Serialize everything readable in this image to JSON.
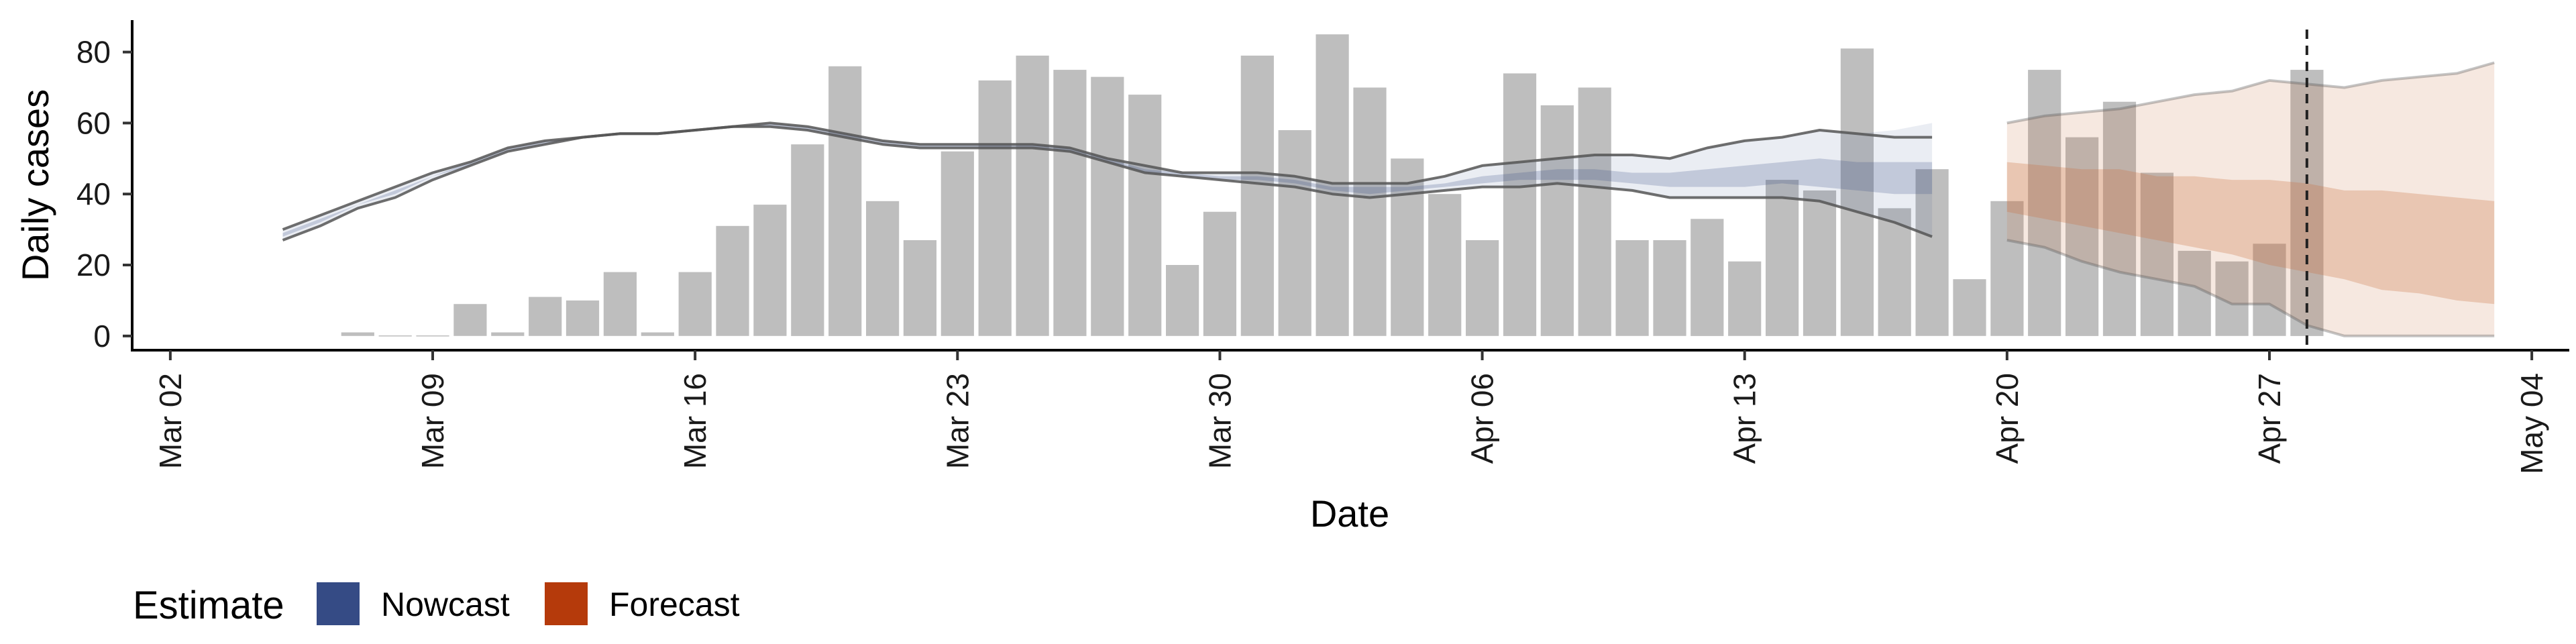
{
  "chart_data": {
    "type": "bar",
    "xlabel": "Date",
    "ylabel": "Daily cases",
    "ylim": [
      -4,
      89
    ],
    "xlim": [
      "2020-03-01",
      "2020-05-05"
    ],
    "y_ticks": [
      0,
      20,
      40,
      60,
      80
    ],
    "x_ticks": [
      {
        "date": "2020-03-02",
        "label": "Mar 02"
      },
      {
        "date": "2020-03-09",
        "label": "Mar 09"
      },
      {
        "date": "2020-03-16",
        "label": "Mar 16"
      },
      {
        "date": "2020-03-23",
        "label": "Mar 23"
      },
      {
        "date": "2020-03-30",
        "label": "Mar 30"
      },
      {
        "date": "2020-04-06",
        "label": "Apr 06"
      },
      {
        "date": "2020-04-13",
        "label": "Apr 13"
      },
      {
        "date": "2020-04-20",
        "label": "Apr 20"
      },
      {
        "date": "2020-04-27",
        "label": "Apr 27"
      },
      {
        "date": "2020-05-04",
        "label": "May 04"
      }
    ],
    "grid": false,
    "legend_position": "bottom-left",
    "bars": {
      "name": "Reported cases",
      "color": "#bebebe",
      "dates": [
        "2020-03-07",
        "2020-03-08",
        "2020-03-09",
        "2020-03-10",
        "2020-03-11",
        "2020-03-12",
        "2020-03-13",
        "2020-03-14",
        "2020-03-15",
        "2020-03-16",
        "2020-03-17",
        "2020-03-18",
        "2020-03-19",
        "2020-03-20",
        "2020-03-21",
        "2020-03-22",
        "2020-03-23",
        "2020-03-24",
        "2020-03-25",
        "2020-03-26",
        "2020-03-27",
        "2020-03-28",
        "2020-03-29",
        "2020-03-30",
        "2020-03-31",
        "2020-04-01",
        "2020-04-02",
        "2020-04-03",
        "2020-04-04",
        "2020-04-05",
        "2020-04-06",
        "2020-04-07",
        "2020-04-08",
        "2020-04-09",
        "2020-04-10",
        "2020-04-11",
        "2020-04-12",
        "2020-04-13",
        "2020-04-14",
        "2020-04-15",
        "2020-04-16",
        "2020-04-17",
        "2020-04-18",
        "2020-04-19",
        "2020-04-20",
        "2020-04-21",
        "2020-04-22",
        "2020-04-23",
        "2020-04-24",
        "2020-04-25",
        "2020-04-26",
        "2020-04-27",
        "2020-04-28"
      ],
      "values": [
        1,
        0,
        0,
        9,
        1,
        11,
        10,
        18,
        1,
        18,
        31,
        37,
        54,
        76,
        38,
        27,
        52,
        72,
        79,
        75,
        73,
        68,
        20,
        35,
        79,
        58,
        85,
        70,
        50,
        40,
        27,
        74,
        65,
        70,
        27,
        27,
        33,
        21,
        44,
        41,
        81,
        36,
        47,
        16,
        38,
        75,
        56,
        66,
        46,
        24,
        21,
        26,
        75
      ]
    },
    "vline": {
      "date": "2020-04-28",
      "style": "dashed",
      "color": "#222222"
    },
    "legend": {
      "title": "Estimate",
      "entries": [
        {
          "label": "Nowcast",
          "color": "#354b85"
        },
        {
          "label": "Forecast",
          "color": "#b53a0b"
        }
      ]
    },
    "estimate_lines": {
      "color": "#555555",
      "start": "2020-03-05",
      "end": "2020-04-19",
      "upper": [
        30,
        34,
        38,
        42,
        46,
        49,
        53,
        55,
        56,
        57,
        57,
        58,
        59,
        60,
        59,
        57,
        55,
        54,
        54,
        54,
        54,
        53,
        50,
        48,
        46,
        46,
        46,
        45,
        43,
        43,
        43,
        45,
        48,
        49,
        50,
        51,
        51,
        50,
        53,
        55,
        56,
        58,
        57,
        56,
        56
      ],
      "lower": [
        27,
        31,
        36,
        39,
        44,
        48,
        52,
        54,
        56,
        57,
        57,
        58,
        59,
        59,
        58,
        56,
        54,
        53,
        53,
        53,
        53,
        52,
        49,
        46,
        45,
        44,
        43,
        42,
        40,
        39,
        40,
        41,
        42,
        42,
        43,
        42,
        41,
        39,
        39,
        39,
        39,
        38,
        35,
        32,
        28
      ]
    },
    "nowcast": {
      "color": "#354b85",
      "start": "2020-03-05",
      "end": "2020-04-19",
      "outer_upper": [
        30,
        34,
        38,
        42,
        46,
        49,
        53,
        55,
        56,
        57,
        57,
        58,
        59,
        60,
        59,
        57,
        55,
        54,
        54,
        54,
        54,
        53,
        50,
        48,
        46,
        46,
        46,
        45,
        43,
        43,
        43,
        45,
        48,
        49,
        50,
        51,
        51,
        50,
        53,
        55,
        56,
        58,
        57,
        58,
        60
      ],
      "outer_lower": [
        27,
        31,
        36,
        39,
        44,
        48,
        52,
        54,
        56,
        57,
        57,
        58,
        59,
        59,
        58,
        56,
        54,
        53,
        53,
        53,
        53,
        52,
        49,
        46,
        45,
        44,
        43,
        42,
        40,
        39,
        40,
        41,
        42,
        42,
        43,
        42,
        41,
        39,
        39,
        39,
        39,
        38,
        35,
        32,
        28
      ],
      "inner_upper": [
        29,
        33,
        37,
        41,
        45,
        49,
        53,
        55,
        56,
        57,
        57,
        58,
        59,
        60,
        59,
        57,
        55,
        54,
        54,
        54,
        54,
        53,
        50,
        47,
        46,
        45,
        45,
        44,
        42,
        42,
        42,
        43,
        45,
        46,
        47,
        47,
        46,
        46,
        47,
        48,
        49,
        50,
        49,
        49,
        49
      ],
      "inner_lower": [
        28,
        32,
        37,
        40,
        45,
        48,
        52,
        54,
        56,
        57,
        57,
        58,
        59,
        59,
        58,
        56,
        54,
        53,
        53,
        53,
        53,
        52,
        49,
        46,
        45,
        44,
        44,
        43,
        41,
        40,
        41,
        42,
        43,
        44,
        44,
        44,
        43,
        42,
        42,
        42,
        43,
        42,
        41,
        40,
        40
      ]
    },
    "forecast": {
      "color": "#c8703e",
      "start": "2020-04-20",
      "end": "2020-05-03",
      "outer_upper": [
        60,
        62,
        63,
        64,
        66,
        68,
        69,
        72,
        71,
        70,
        72,
        73,
        74,
        77
      ],
      "outer_lower": [
        27,
        25,
        21,
        18,
        16,
        14,
        9,
        9,
        3,
        0,
        0,
        0,
        0,
        0
      ],
      "inner_upper": [
        49,
        48,
        47,
        47,
        45,
        45,
        44,
        44,
        43,
        41,
        41,
        40,
        39,
        38
      ],
      "inner_lower": [
        35,
        33,
        31,
        29,
        27,
        25,
        23,
        20,
        18,
        16,
        13,
        12,
        10,
        9
      ]
    }
  }
}
